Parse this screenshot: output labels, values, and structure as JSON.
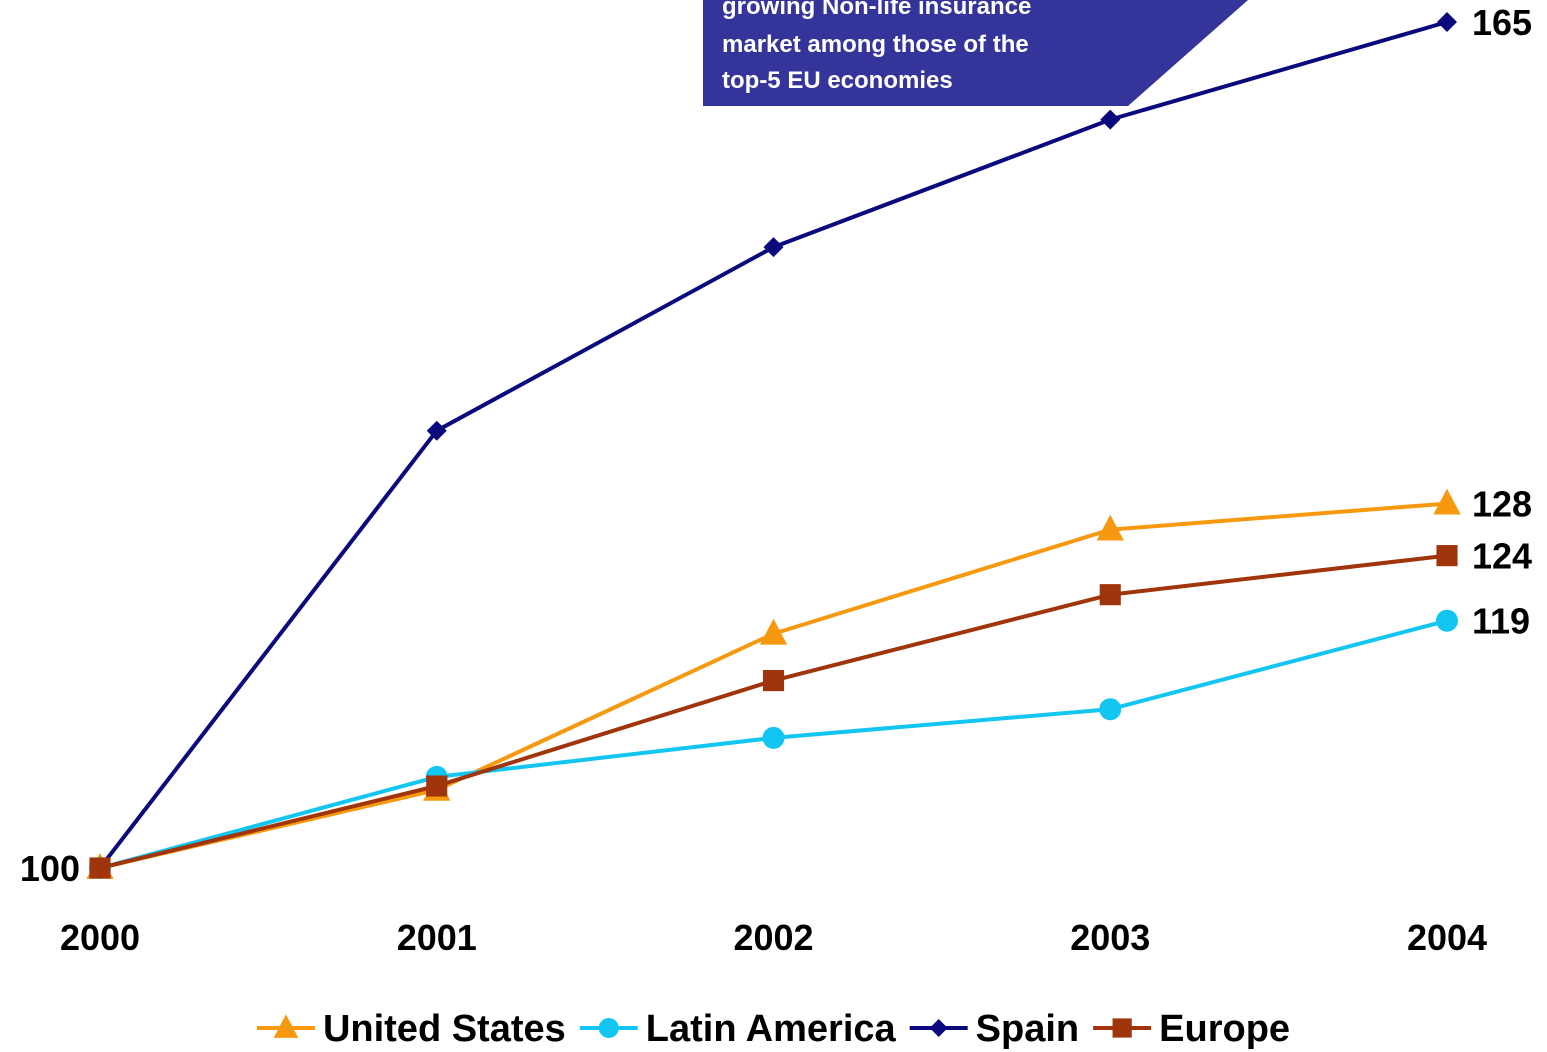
{
  "chart_data": {
    "type": "line",
    "title": "",
    "xlabel": "",
    "ylabel": "",
    "categories": [
      "2000",
      "2001",
      "2002",
      "2003",
      "2004"
    ],
    "ylim": [
      100,
      166
    ],
    "grid": false,
    "legend_position": "bottom",
    "series": [
      {
        "name": "United States",
        "color": "#F7990F",
        "marker": "triangle",
        "values": [
          100,
          106,
          118,
          126,
          128
        ],
        "end_label": "128"
      },
      {
        "name": "Latin America",
        "color": "#12C6F1",
        "marker": "circle",
        "values": [
          100,
          107,
          110,
          112.2,
          119
        ],
        "end_label": "119"
      },
      {
        "name": "Spain",
        "color": "#0A0A7E",
        "marker": "diamond",
        "values": [
          100,
          133.6,
          147.7,
          157.5,
          165
        ],
        "end_label": "165"
      },
      {
        "name": "Europe",
        "color": "#A0340A",
        "marker": "square",
        "values": [
          100,
          106.3,
          114.4,
          121,
          124
        ],
        "end_label": "124"
      }
    ],
    "start_label": "100",
    "annotation": {
      "lines": [
        "growing Non-life insurance",
        "market among those of the",
        "top-5 EU economies"
      ],
      "color": "#35349A"
    }
  }
}
